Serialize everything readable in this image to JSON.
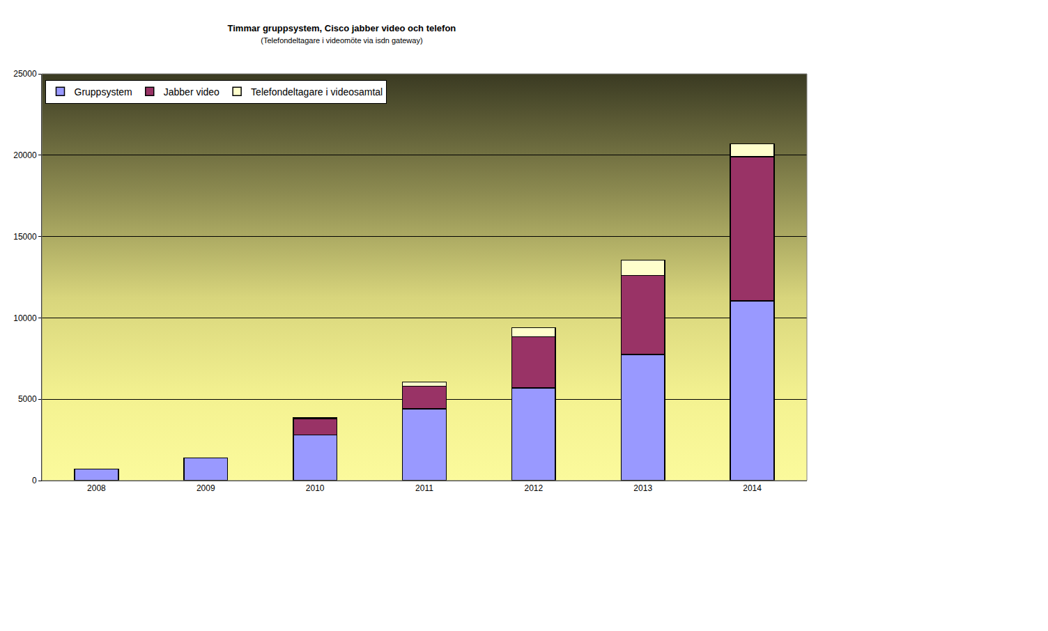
{
  "chart_data": {
    "type": "bar",
    "title": "Timmar gruppsystem, Cisco jabber video och telefon",
    "subtitle": "(Telefondeltagare i videomöte via isdn gateway)",
    "categories": [
      "2008",
      "2009",
      "2010",
      "2011",
      "2012",
      "2013",
      "2014"
    ],
    "series": [
      {
        "name": "Gruppsystem",
        "color": "#9999ff",
        "values": [
          700,
          1400,
          2800,
          4400,
          5700,
          7750,
          11050
        ]
      },
      {
        "name": "Jabber video",
        "color": "#993366",
        "values": [
          null,
          null,
          1000,
          1400,
          3150,
          4850,
          8850
        ]
      },
      {
        "name": "Telefondeltagare i videosamtal",
        "color": "#ffffcc",
        "values": [
          null,
          null,
          50,
          250,
          550,
          950,
          800
        ]
      }
    ],
    "stacked": true,
    "ylim": [
      0,
      25000
    ],
    "yticks": [
      0,
      5000,
      10000,
      15000,
      20000,
      25000
    ],
    "grid": true,
    "legend": "upper left"
  }
}
